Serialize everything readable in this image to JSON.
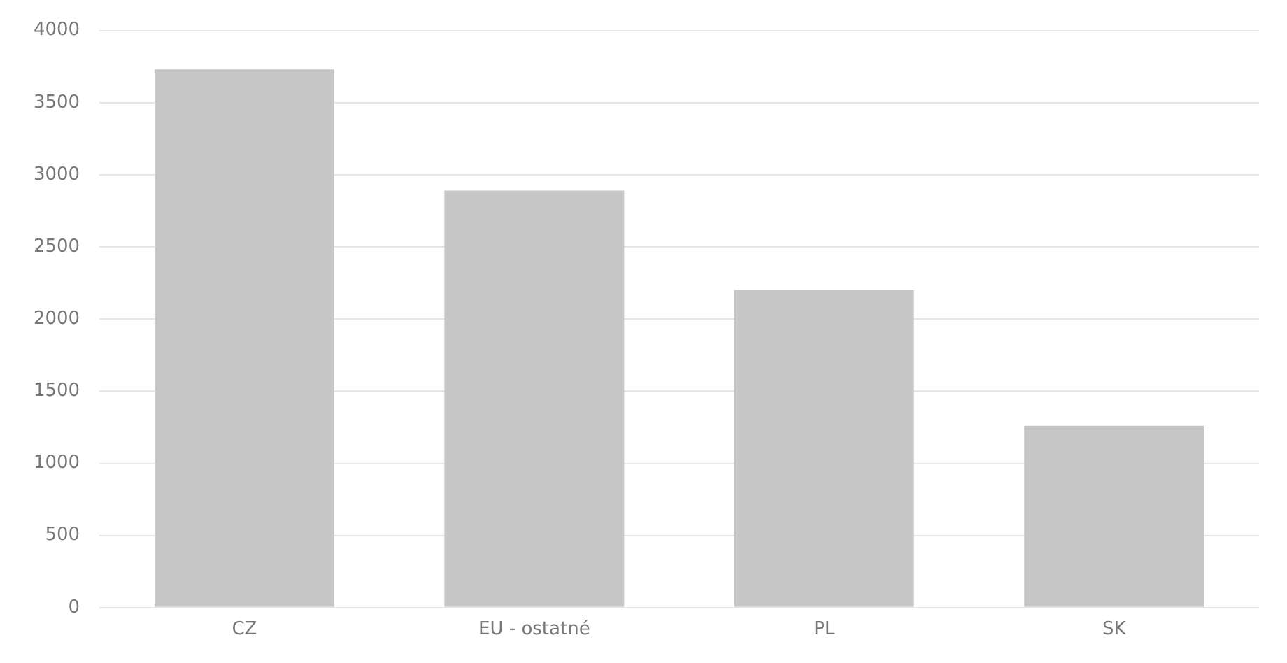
{
  "chart_data": {
    "type": "bar",
    "categories": [
      "CZ",
      "EU - ostatné",
      "PL",
      "SK"
    ],
    "values": [
      3730,
      2890,
      2200,
      1260
    ],
    "color": "#c6c6c6",
    "ylim": [
      0,
      4000
    ],
    "yticks": [
      0,
      500,
      1000,
      1500,
      2000,
      2500,
      3000,
      3500,
      4000
    ],
    "grid": "y",
    "legend": false
  }
}
